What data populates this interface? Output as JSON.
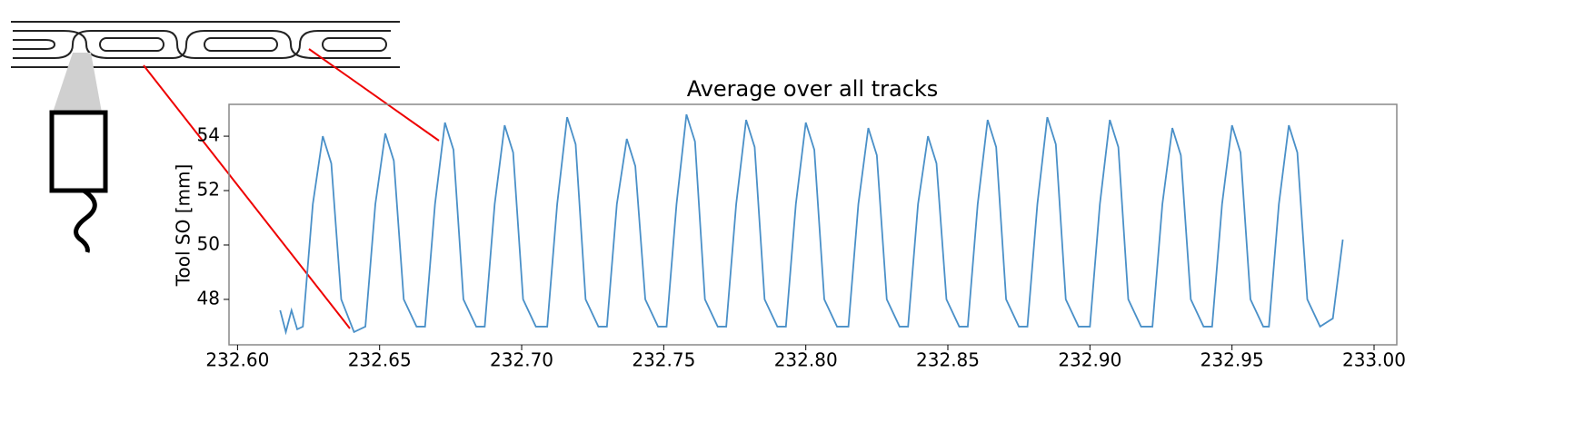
{
  "chart_data": {
    "type": "line",
    "title": "Average over all tracks",
    "y_label": "Tool SO [mm]",
    "color": "#4a90c8",
    "x": [
      232.615,
      232.617,
      232.619,
      232.621,
      232.623,
      232.6265,
      232.63,
      232.633,
      232.6365,
      232.641,
      232.645,
      232.6485,
      232.652,
      232.655,
      232.6585,
      232.663,
      232.666,
      232.6695,
      232.673,
      232.676,
      232.6795,
      232.684,
      232.687,
      232.6905,
      232.694,
      232.697,
      232.7005,
      232.705,
      232.709,
      232.7125,
      232.716,
      232.719,
      232.7225,
      232.727,
      232.73,
      232.7335,
      232.737,
      232.74,
      232.7435,
      232.748,
      232.751,
      232.7545,
      232.758,
      232.761,
      232.7645,
      232.769,
      232.772,
      232.7755,
      232.779,
      232.782,
      232.7855,
      232.79,
      232.793,
      232.7965,
      232.8,
      232.803,
      232.8065,
      232.811,
      232.815,
      232.8185,
      232.822,
      232.825,
      232.8285,
      232.833,
      232.836,
      232.8395,
      232.843,
      232.846,
      232.8495,
      232.854,
      232.857,
      232.8605,
      232.864,
      232.867,
      232.8705,
      232.875,
      232.878,
      232.8815,
      232.885,
      232.888,
      232.8915,
      232.896,
      232.9,
      232.9035,
      232.907,
      232.91,
      232.9135,
      232.918,
      232.922,
      232.9255,
      232.929,
      232.932,
      232.9355,
      232.94,
      232.943,
      232.9465,
      232.95,
      232.953,
      232.9565,
      232.961,
      232.963,
      232.9665,
      232.97,
      232.973,
      232.9765,
      232.981,
      232.9855,
      232.989
    ],
    "values": [
      47.6,
      46.8,
      47.6,
      46.9,
      47.0,
      51.5,
      54.0,
      53.0,
      48.0,
      46.8,
      47.0,
      51.5,
      54.1,
      53.1,
      48.0,
      47.0,
      47.0,
      51.5,
      54.5,
      53.5,
      48.0,
      47.0,
      47.0,
      51.5,
      54.4,
      53.4,
      48.0,
      47.0,
      47.0,
      51.5,
      54.7,
      53.7,
      48.0,
      47.0,
      47.0,
      51.5,
      53.9,
      52.9,
      48.0,
      47.0,
      47.0,
      51.5,
      54.8,
      53.8,
      48.0,
      47.0,
      47.0,
      51.5,
      54.6,
      53.6,
      48.0,
      47.0,
      47.0,
      51.5,
      54.5,
      53.5,
      48.0,
      47.0,
      47.0,
      51.5,
      54.3,
      53.3,
      48.0,
      47.0,
      47.0,
      51.5,
      54.0,
      53.0,
      48.0,
      47.0,
      47.0,
      51.5,
      54.6,
      53.6,
      48.0,
      47.0,
      47.0,
      51.5,
      54.7,
      53.7,
      48.0,
      47.0,
      47.0,
      51.5,
      54.6,
      53.6,
      48.0,
      47.0,
      47.0,
      51.5,
      54.3,
      53.3,
      48.0,
      47.0,
      47.0,
      51.5,
      54.4,
      53.4,
      48.0,
      47.0,
      47.0,
      51.5,
      54.4,
      53.4,
      48.0,
      47.0,
      47.3,
      50.2
    ],
    "xlim": [
      232.597,
      233.008
    ],
    "ylim": [
      46.33,
      55.17
    ],
    "xticks": [
      {
        "value": 232.6,
        "label": "232.60"
      },
      {
        "value": 232.65,
        "label": "232.65"
      },
      {
        "value": 232.7,
        "label": "232.70"
      },
      {
        "value": 232.75,
        "label": "232.75"
      },
      {
        "value": 232.8,
        "label": "232.80"
      },
      {
        "value": 232.85,
        "label": "232.85"
      },
      {
        "value": 232.9,
        "label": "232.90"
      },
      {
        "value": 232.95,
        "label": "232.95"
      },
      {
        "value": 233.0,
        "label": "233.00"
      }
    ],
    "yticks": [
      48,
      50,
      52,
      54
    ],
    "grid": false
  }
}
